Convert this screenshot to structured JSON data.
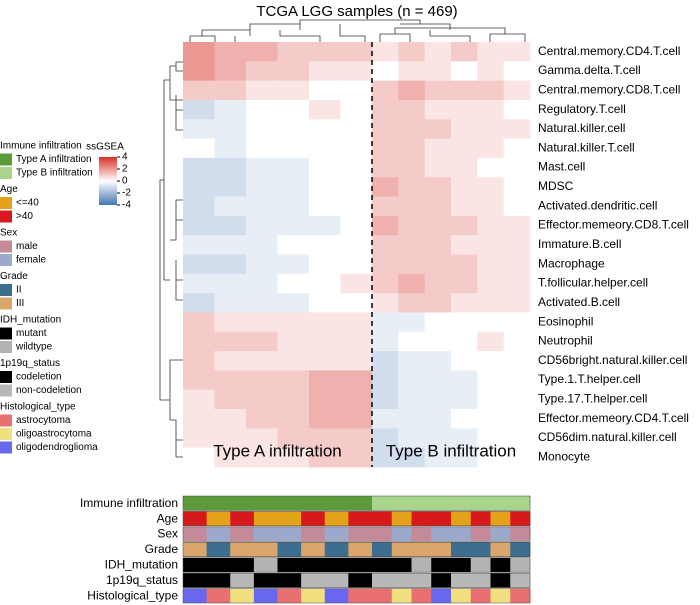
{
  "chart_data": {
    "type": "heatmap",
    "title": "TCGA LGG samples (n = 469)",
    "rows": [
      "Central.memory.CD4.T.cell",
      "Gamma.delta.T.cell",
      "Central.memory.CD8.T.cell",
      "Regulatory.T.cell",
      "Natural.killer.cell",
      "Natural.killer.T.cell",
      "Mast.cell",
      "MDSC",
      "Activated.dendritic.cell",
      "Effector.memeory.CD8.T.cell",
      "Immature.B.cell",
      "Macrophage",
      "T.follicular.helper.cell",
      "Activated.B.cell",
      "Eosinophil",
      "Neutrophil",
      "CD56bright.natural.killer.cell",
      "Type.1.T.helper.cell",
      "Type.17.T.helper.cell",
      "Effector.memeory.CD4.T.cell",
      "CD56dim.natural.killer.cell",
      "Monocyte"
    ],
    "values": [
      [
        2,
        1.5,
        1.5,
        1,
        1,
        1,
        0.5,
        1,
        0.5,
        1,
        0.5,
        0.5
      ],
      [
        2,
        1.5,
        1,
        1,
        0.5,
        0.5,
        0,
        0.5,
        0.5,
        0,
        0.5,
        0
      ],
      [
        1,
        1,
        0.5,
        0.5,
        0,
        0,
        1,
        1.5,
        1,
        1,
        1,
        0.5
      ],
      [
        -1,
        -0.5,
        0,
        0,
        0.5,
        0,
        1,
        1,
        0.5,
        0.5,
        0.5,
        0
      ],
      [
        -0.5,
        -0.5,
        0,
        0,
        0,
        0,
        1,
        1,
        1,
        0.5,
        0.5,
        0.5
      ],
      [
        0,
        -0.5,
        0,
        0,
        0,
        0,
        1,
        1,
        0.5,
        0.5,
        0.5,
        0
      ],
      [
        -1,
        -1,
        -0.5,
        -0.5,
        0,
        0,
        1,
        1,
        0.5,
        0.5,
        0,
        0
      ],
      [
        -1,
        -1,
        -0.5,
        -0.5,
        0,
        0,
        1.5,
        1,
        1,
        0.5,
        0.5,
        0
      ],
      [
        -1,
        -0.5,
        -0.5,
        -0.5,
        0,
        0,
        1,
        1,
        1,
        0.5,
        0.5,
        0
      ],
      [
        -1,
        -1,
        -0.5,
        -0.5,
        -0.5,
        0,
        1.5,
        1,
        1,
        1,
        0.5,
        0.5
      ],
      [
        -0.5,
        -0.5,
        -0.5,
        0,
        0,
        0,
        1,
        1,
        1,
        0.5,
        0.5,
        0.5
      ],
      [
        -1,
        -1,
        -0.5,
        -0.5,
        0,
        0,
        1,
        1,
        1,
        1,
        0.5,
        0.5
      ],
      [
        -0.5,
        -0.5,
        -0.5,
        0,
        0,
        0.5,
        1,
        1.5,
        1,
        1,
        0.5,
        0.5
      ],
      [
        -1,
        -0.5,
        -0.5,
        -0.5,
        0,
        0,
        0.5,
        1,
        1,
        0.5,
        0.5,
        0.5
      ],
      [
        1,
        0.5,
        0.5,
        0.5,
        0.5,
        0.5,
        -0.5,
        -0.5,
        0,
        0,
        0,
        0
      ],
      [
        1,
        1,
        1,
        0.5,
        0.5,
        0.5,
        -0.5,
        0,
        0,
        0,
        0.5,
        0
      ],
      [
        1,
        0.5,
        0.5,
        0.5,
        0.5,
        0.5,
        -1,
        -0.5,
        -0.5,
        0,
        0,
        0
      ],
      [
        1,
        1,
        1,
        1,
        1.5,
        1.5,
        -1,
        -0.5,
        -0.5,
        -0.5,
        0,
        0
      ],
      [
        0.5,
        1,
        1,
        1,
        1.5,
        1.5,
        -1,
        -0.5,
        -0.5,
        -0.5,
        0,
        0
      ],
      [
        0.5,
        0.5,
        1,
        1,
        1.5,
        1.5,
        -0.5,
        -0.5,
        -0.5,
        0,
        0,
        0
      ],
      [
        0.5,
        0.5,
        0.5,
        1,
        1,
        1,
        -1,
        -0.5,
        -0.5,
        -0.5,
        0,
        0
      ],
      [
        0,
        0.5,
        0.5,
        0.5,
        1,
        1,
        -1,
        -1,
        -0.5,
        -0.5,
        0,
        0
      ]
    ],
    "colorbar_title": "ssGSEA",
    "colorbar_lim": [
      -4,
      4
    ],
    "colorbar_ticks": [
      4,
      2,
      0,
      -2,
      -4
    ],
    "colorbar_colors": [
      "#4575b4",
      "#ffffff",
      "#d73027"
    ],
    "annotations": [
      {
        "name": "Immune infiltration",
        "levels": [
          "Type A infiltration",
          "Type B infiltration"
        ],
        "colors": [
          "#5b9b3c",
          "#a9d48c"
        ],
        "values": [
          0,
          0,
          0,
          0,
          0,
          0,
          0,
          0,
          1,
          1,
          1,
          1,
          1,
          1,
          1,
          1
        ]
      },
      {
        "name": "Age",
        "levels": [
          "<=40",
          ">40"
        ],
        "colors": [
          "#e3a21a",
          "#d7191c"
        ],
        "values": [
          1,
          0,
          1,
          0,
          0,
          1,
          0,
          1,
          1,
          0,
          1,
          1,
          0,
          1,
          0,
          1
        ]
      },
      {
        "name": "Sex",
        "levels": [
          "male",
          "female"
        ],
        "colors": [
          "#c48a9a",
          "#9ba9cc"
        ],
        "values": [
          0,
          1,
          0,
          1,
          1,
          0,
          1,
          0,
          0,
          1,
          0,
          1,
          1,
          0,
          1,
          0
        ]
      },
      {
        "name": "Grade",
        "levels": [
          "II",
          "III"
        ],
        "colors": [
          "#3b6e8f",
          "#dba66b"
        ],
        "values": [
          1,
          0,
          1,
          1,
          0,
          1,
          0,
          1,
          0,
          1,
          1,
          1,
          0,
          0,
          1,
          0
        ]
      },
      {
        "name": "IDH_mutation",
        "levels": [
          "mutant",
          "wildtype"
        ],
        "colors": [
          "#000000",
          "#b3b3b3"
        ],
        "values": [
          0,
          0,
          0,
          1,
          0,
          0,
          0,
          0,
          0,
          0,
          1,
          0,
          0,
          1,
          0,
          1
        ]
      },
      {
        "name": "1p19q_status",
        "levels": [
          "codeletion",
          "non-codeletion"
        ],
        "colors": [
          "#000000",
          "#b8b8b8"
        ],
        "values": [
          0,
          0,
          1,
          0,
          0,
          1,
          1,
          0,
          1,
          1,
          1,
          0,
          1,
          1,
          0,
          1
        ]
      },
      {
        "name": "Histological_type",
        "levels": [
          "astrocytoma",
          "oligoastrocytoma",
          "oligodendroglioma"
        ],
        "colors": [
          "#e87070",
          "#f0e080",
          "#6868ee"
        ],
        "values": [
          2,
          0,
          1,
          2,
          0,
          1,
          2,
          0,
          0,
          1,
          0,
          2,
          1,
          0,
          1,
          0
        ]
      }
    ]
  }
}
